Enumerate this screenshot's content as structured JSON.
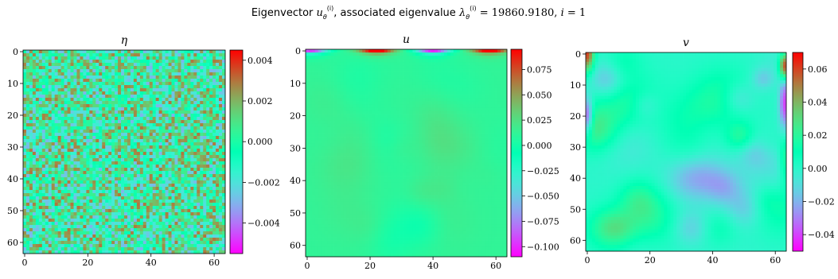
{
  "figure": {
    "suptitle": "Eigenvector u_θ^(i), associated eigenvalue λ_θ^(i) = 19860.9180, i = 1"
  },
  "chart_data": [
    {
      "type": "heatmap",
      "title": "η",
      "x_range": [
        0,
        63
      ],
      "y_range": [
        0,
        63
      ],
      "y_inverted": true,
      "x_ticks": [
        "0",
        "20",
        "40",
        "60"
      ],
      "y_ticks": [
        "0",
        "10",
        "20",
        "30",
        "40",
        "50",
        "60"
      ],
      "colormap": "rainbow",
      "colorbar_range": [
        -0.0055,
        0.0045
      ],
      "colorbar_ticks": [
        "0.004",
        "0.002",
        "0.000",
        "−0.002",
        "−0.004"
      ],
      "colorbar_tick_values": [
        0.004,
        0.002,
        0.0,
        -0.002,
        -0.004
      ],
      "pattern": "uncorrelated pixel-level noise, values roughly uniform within about ±0.003"
    },
    {
      "type": "heatmap",
      "title": "u",
      "x_range": [
        0,
        63
      ],
      "y_range": [
        0,
        63
      ],
      "y_inverted": true,
      "x_ticks": [
        "0",
        "20",
        "40",
        "60"
      ],
      "y_ticks": [
        "0",
        "10",
        "20",
        "30",
        "40",
        "50",
        "60"
      ],
      "colormap": "rainbow",
      "colorbar_range": [
        -0.11,
        0.095
      ],
      "colorbar_ticks": [
        "0.075",
        "0.050",
        "0.025",
        "0.000",
        "−0.025",
        "−0.050",
        "−0.075",
        "−0.100"
      ],
      "colorbar_tick_values": [
        0.075,
        0.05,
        0.025,
        0.0,
        -0.025,
        -0.05,
        -0.075,
        -0.1
      ],
      "pattern": "smooth field near 0.01; top row alternates: min near x≈1, max near x≈22, min near x≈40, max near x≈58"
    },
    {
      "type": "heatmap",
      "title": "v",
      "x_range": [
        0,
        63
      ],
      "y_range": [
        0,
        63
      ],
      "y_inverted": true,
      "x_ticks": [
        "0",
        "20",
        "40",
        "60"
      ],
      "y_ticks": [
        "0",
        "10",
        "20",
        "30",
        "40",
        "50",
        "60"
      ],
      "colormap": "rainbow",
      "colorbar_range": [
        -0.05,
        0.07
      ],
      "colorbar_ticks": [
        "0.06",
        "0.04",
        "0.02",
        "0.00",
        "−0.02",
        "−0.04"
      ],
      "colorbar_tick_values": [
        0.06,
        0.04,
        0.02,
        0.0,
        -0.02,
        -0.04
      ],
      "pattern": "smooth field near 0.0; strong negative at left edge y≈20 and right edge y≈15; positive at left-top corner and right edge y≈4"
    }
  ]
}
